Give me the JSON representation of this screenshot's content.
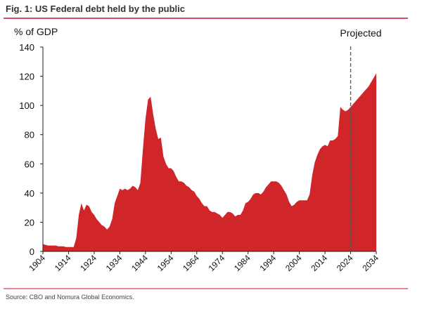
{
  "chart_data": {
    "type": "area",
    "title": "Fig. 1: US Federal debt held by the public",
    "y_label": "% of GDP",
    "annotation": "Projected",
    "projection_start": 2024,
    "source": "Source: CBO and Nomura Global Economics.",
    "color": "#d0262a",
    "x": [
      1904,
      1905,
      1906,
      1907,
      1908,
      1909,
      1910,
      1911,
      1912,
      1913,
      1914,
      1915,
      1916,
      1917,
      1918,
      1919,
      1920,
      1921,
      1922,
      1923,
      1924,
      1925,
      1926,
      1927,
      1928,
      1929,
      1930,
      1931,
      1932,
      1933,
      1934,
      1935,
      1936,
      1937,
      1938,
      1939,
      1940,
      1941,
      1942,
      1943,
      1944,
      1945,
      1946,
      1947,
      1948,
      1949,
      1950,
      1951,
      1952,
      1953,
      1954,
      1955,
      1956,
      1957,
      1958,
      1959,
      1960,
      1961,
      1962,
      1963,
      1964,
      1965,
      1966,
      1967,
      1968,
      1969,
      1970,
      1971,
      1972,
      1973,
      1974,
      1975,
      1976,
      1977,
      1978,
      1979,
      1980,
      1981,
      1982,
      1983,
      1984,
      1985,
      1986,
      1987,
      1988,
      1989,
      1990,
      1991,
      1992,
      1993,
      1994,
      1995,
      1996,
      1997,
      1998,
      1999,
      2000,
      2001,
      2002,
      2003,
      2004,
      2005,
      2006,
      2007,
      2008,
      2009,
      2010,
      2011,
      2012,
      2013,
      2014,
      2015,
      2016,
      2017,
      2018,
      2019,
      2020,
      2021,
      2022,
      2023,
      2024,
      2025,
      2026,
      2027,
      2028,
      2029,
      2030,
      2031,
      2032,
      2033,
      2034
    ],
    "values": [
      5,
      4.5,
      4,
      4,
      4,
      4,
      3.5,
      3.5,
      3.5,
      3,
      3,
      3,
      3,
      9,
      25,
      33,
      28,
      32,
      31,
      27,
      25,
      22,
      20,
      18,
      17,
      15,
      17,
      22,
      33,
      38,
      43,
      42,
      43,
      42,
      43,
      45,
      44,
      42,
      47,
      70,
      91,
      104,
      106,
      94,
      84,
      77,
      78,
      65,
      60,
      57,
      57,
      55,
      51,
      48,
      48,
      47,
      45,
      44,
      42,
      41,
      38,
      36,
      33,
      31,
      31,
      28,
      27,
      27,
      26,
      25,
      23,
      25,
      27,
      27,
      26,
      24,
      25,
      25,
      28,
      33,
      34,
      36,
      39,
      40,
      40,
      39,
      41,
      44,
      46,
      48,
      48,
      48,
      47,
      45,
      42,
      39,
      34,
      31,
      32,
      34,
      35,
      35,
      35,
      35,
      39,
      52,
      61,
      66,
      70,
      72,
      73,
      72,
      76,
      76,
      77,
      79,
      99,
      97,
      96,
      97,
      99,
      101,
      103,
      105,
      107,
      109,
      111,
      113,
      116,
      119,
      122
    ],
    "xlim": [
      1904,
      2034
    ],
    "xticks": [
      1904,
      1914,
      1924,
      1934,
      1944,
      1954,
      1964,
      1974,
      1984,
      1994,
      2004,
      2014,
      2024,
      2034
    ],
    "ylim": [
      0,
      140
    ],
    "yticks": [
      0,
      20,
      40,
      60,
      80,
      100,
      120,
      140
    ]
  }
}
